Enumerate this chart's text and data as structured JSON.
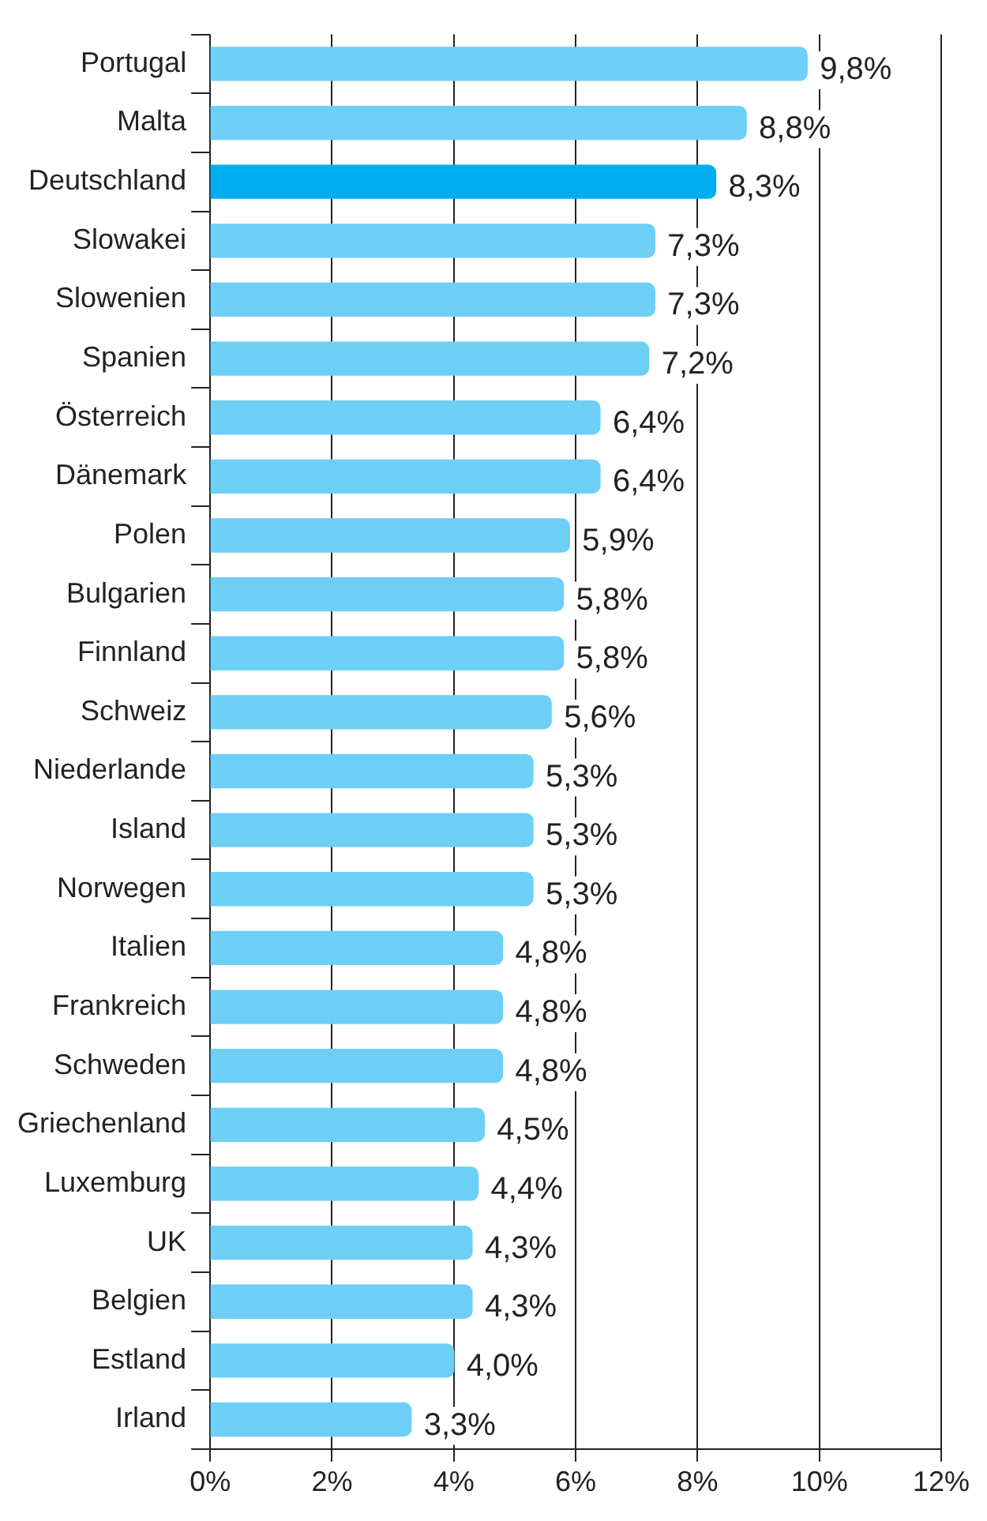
{
  "chart_data": {
    "type": "bar",
    "orientation": "horizontal",
    "categories": [
      "Portugal",
      "Malta",
      "Deutschland",
      "Slowakei",
      "Slowenien",
      "Spanien",
      "Österreich",
      "Dänemark",
      "Polen",
      "Bulgarien",
      "Finnland",
      "Schweiz",
      "Niederlande",
      "Island",
      "Norwegen",
      "Italien",
      "Frankreich",
      "Schweden",
      "Griechenland",
      "Luxemburg",
      "UK",
      "Belgien",
      "Estland",
      "Irland"
    ],
    "values": [
      9.8,
      8.8,
      8.3,
      7.3,
      7.3,
      7.2,
      6.4,
      6.4,
      5.9,
      5.8,
      5.8,
      5.6,
      5.3,
      5.3,
      5.3,
      4.8,
      4.8,
      4.8,
      4.5,
      4.4,
      4.3,
      4.3,
      4.0,
      3.3
    ],
    "value_labels": [
      "9,8%",
      "8,8%",
      "8,3%",
      "7,3%",
      "7,3%",
      "7,2%",
      "6,4%",
      "6,4%",
      "5,9%",
      "5,8%",
      "5,8%",
      "5,6%",
      "5,3%",
      "5,3%",
      "5,3%",
      "4,8%",
      "4,8%",
      "4,8%",
      "4,5%",
      "4,4%",
      "4,3%",
      "4,3%",
      "4,0%",
      "3,3%"
    ],
    "colors": [
      "#6dcff6",
      "#6dcff6",
      "#00aeef",
      "#6dcff6",
      "#6dcff6",
      "#6dcff6",
      "#6dcff6",
      "#6dcff6",
      "#6dcff6",
      "#6dcff6",
      "#6dcff6",
      "#6dcff6",
      "#6dcff6",
      "#6dcff6",
      "#6dcff6",
      "#6dcff6",
      "#6dcff6",
      "#6dcff6",
      "#6dcff6",
      "#6dcff6",
      "#6dcff6",
      "#6dcff6",
      "#6dcff6",
      "#6dcff6"
    ],
    "xlim": [
      0,
      12
    ],
    "xticks": [
      {
        "value": 0,
        "label": "0%"
      },
      {
        "value": 2,
        "label": "2%"
      },
      {
        "value": 4,
        "label": "4%"
      },
      {
        "value": 6,
        "label": "6%"
      },
      {
        "value": 8,
        "label": "8%"
      },
      {
        "value": 10,
        "label": "10%"
      },
      {
        "value": 12,
        "label": "12%"
      }
    ],
    "grid": "x",
    "legend": false
  }
}
